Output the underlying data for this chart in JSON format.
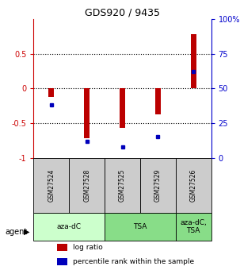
{
  "title": "GDS920 / 9435",
  "samples": [
    "GSM27524",
    "GSM27528",
    "GSM27525",
    "GSM27529",
    "GSM27526"
  ],
  "log_ratios": [
    -0.12,
    -0.72,
    -0.57,
    -0.38,
    0.78
  ],
  "percentile_ranks": [
    38,
    12,
    8,
    15,
    62
  ],
  "bar_color": "#bb0000",
  "dot_color": "#0000bb",
  "ylim_left": [
    -1,
    1
  ],
  "ylim_right": [
    0,
    100
  ],
  "yticks_left": [
    -1,
    -0.5,
    0,
    0.5
  ],
  "ytick_labels_left": [
    "-1",
    "-0.5",
    "0",
    "0.5"
  ],
  "yticks_right": [
    0,
    25,
    50,
    75,
    100
  ],
  "ytick_labels_right": [
    "0",
    "25",
    "50",
    "75",
    "100%"
  ],
  "dotted_lines": [
    -0.5,
    0,
    0.5
  ],
  "agent_groups": [
    {
      "label": "aza-dC",
      "span": [
        0,
        2
      ],
      "color": "#ccffcc"
    },
    {
      "label": "TSA",
      "span": [
        2,
        4
      ],
      "color": "#88dd88"
    },
    {
      "label": "aza-dC,\nTSA",
      "span": [
        4,
        5
      ],
      "color": "#88dd88"
    }
  ],
  "legend_items": [
    {
      "color": "#bb0000",
      "label": "log ratio"
    },
    {
      "color": "#0000bb",
      "label": "percentile rank within the sample"
    }
  ],
  "agent_label": "agent",
  "left_axis_color": "#cc0000",
  "right_axis_color": "#0000cc",
  "sample_box_color": "#cccccc",
  "bar_width": 0.15
}
